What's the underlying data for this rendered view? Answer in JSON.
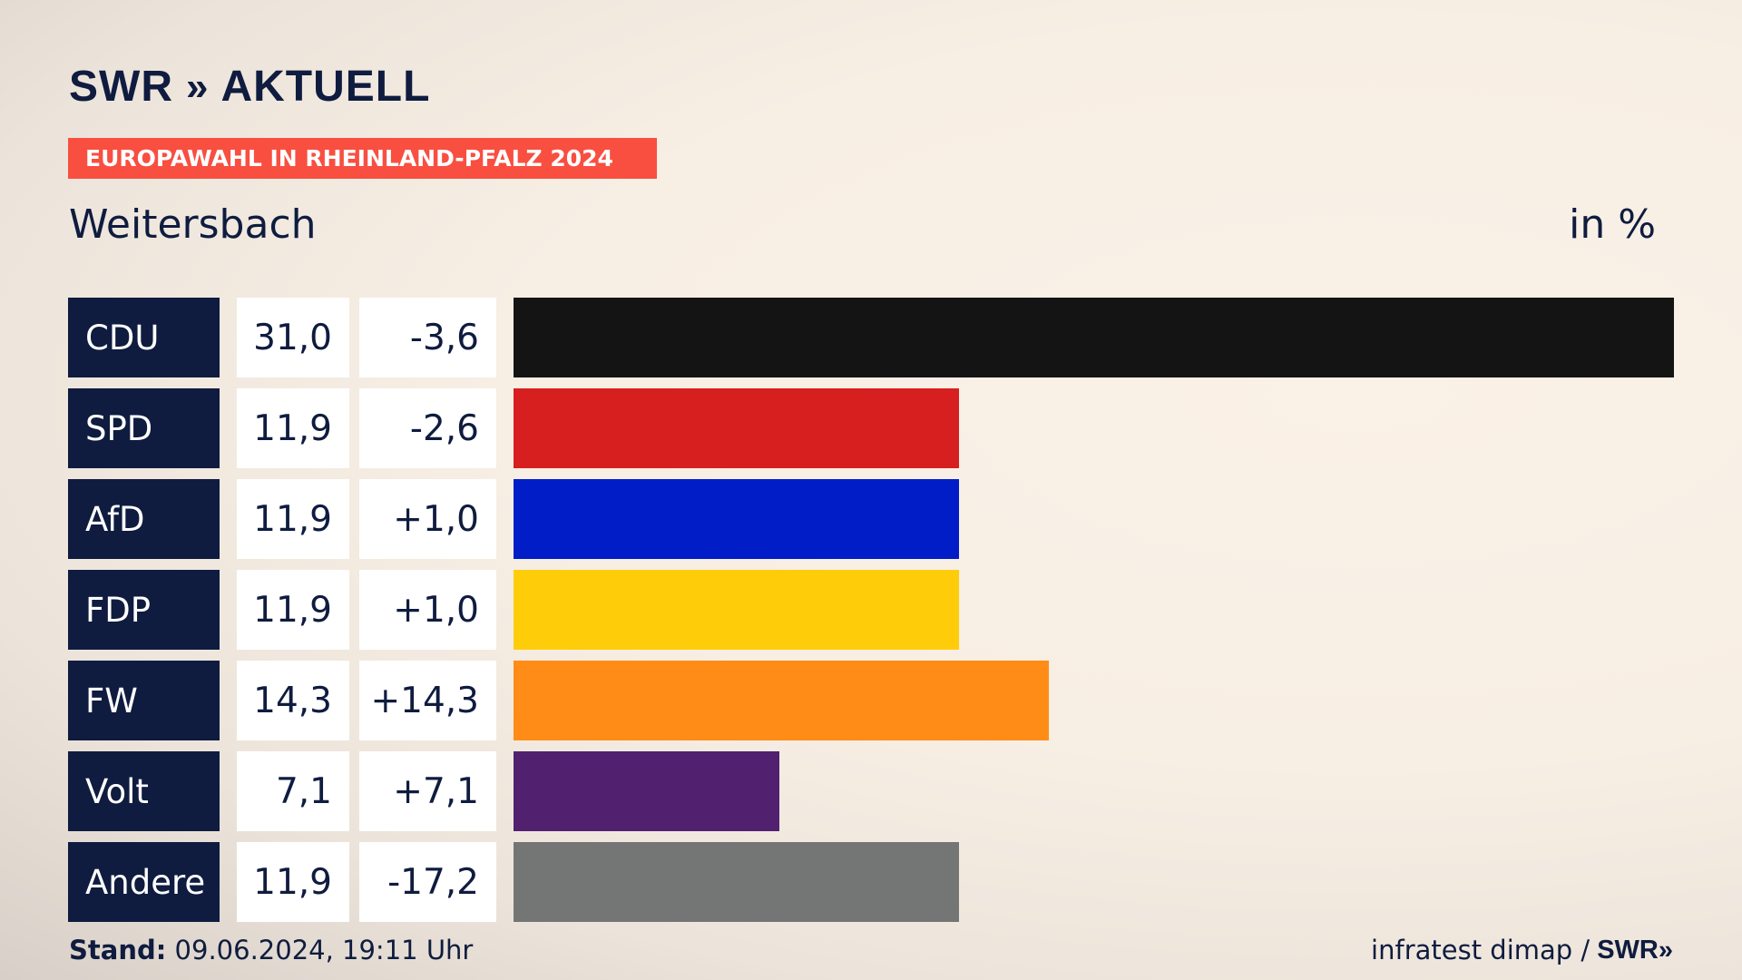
{
  "brand": {
    "logo_swr": "SWR",
    "logo_chevrons": "»",
    "logo_aktuell": "AKTUELL"
  },
  "banner": "EUROPAWAHL IN RHEINLAND-PFALZ 2024",
  "place": "Weitersbach",
  "unit_label": "in %",
  "chart_data": {
    "type": "bar",
    "categories": [
      "CDU",
      "SPD",
      "AfD",
      "FDP",
      "FW",
      "Volt",
      "Andere"
    ],
    "values": [
      31.0,
      11.9,
      11.9,
      11.9,
      14.3,
      7.1,
      11.9
    ],
    "value_labels": [
      "31,0",
      "11,9",
      "11,9",
      "11,9",
      "14,3",
      "7,1",
      "11,9"
    ],
    "diff_labels": [
      "-3,6",
      "-2,6",
      "+1,0",
      "+1,0",
      "+14,3",
      "+7,1",
      "-17,2"
    ],
    "diffs": [
      -3.6,
      -2.6,
      1.0,
      1.0,
      14.3,
      7.1,
      -17.2
    ],
    "colors": [
      "#141414",
      "#d71f1f",
      "#001dc8",
      "#ffcc09",
      "#ff8c17",
      "#51206f",
      "#747575"
    ],
    "xlim": [
      0,
      31.0
    ],
    "orientation": "horizontal"
  },
  "footer": {
    "stand_label": "Stand:",
    "stand_value": "09.06.2024, 19:11 Uhr",
    "source": "infratest dimap /",
    "source_brand": "SWR",
    "source_chevrons": "»"
  }
}
